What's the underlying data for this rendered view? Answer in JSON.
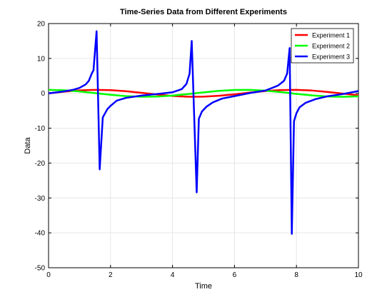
{
  "chart_data": {
    "type": "line",
    "title": "Time-Series Data from Different Experiments",
    "xlabel": "Time",
    "ylabel": "Data",
    "xlim": [
      0,
      10
    ],
    "ylim": [
      -50,
      20
    ],
    "xticks": [
      0,
      2,
      4,
      6,
      8,
      10
    ],
    "yticks": [
      -50,
      -40,
      -30,
      -20,
      -10,
      0,
      10,
      20
    ],
    "grid": true,
    "legend_position": "top-right",
    "series": [
      {
        "name": "Experiment 1",
        "color": "#ff0000",
        "x": [
          0,
          0.5,
          1,
          1.5,
          2,
          2.5,
          3,
          3.5,
          4,
          4.5,
          5,
          5.5,
          6,
          6.5,
          7,
          7.5,
          8,
          8.5,
          9,
          9.5,
          10
        ],
        "y": [
          0,
          0.48,
          0.84,
          1.0,
          0.91,
          0.6,
          0.14,
          -0.35,
          -0.76,
          -0.98,
          -0.96,
          -0.71,
          -0.28,
          0.22,
          0.66,
          0.94,
          0.99,
          0.8,
          0.41,
          -0.08,
          -0.54
        ]
      },
      {
        "name": "Experiment 2",
        "color": "#00ff00",
        "x": [
          0,
          0.5,
          1,
          1.5,
          2,
          2.5,
          3,
          3.5,
          4,
          4.5,
          5,
          5.5,
          6,
          6.5,
          7,
          7.5,
          8,
          8.5,
          9,
          9.5,
          10
        ],
        "y": [
          1.0,
          0.88,
          0.54,
          0.07,
          -0.42,
          -0.8,
          -0.99,
          -0.94,
          -0.65,
          -0.21,
          0.28,
          0.71,
          0.96,
          0.98,
          0.75,
          0.35,
          -0.15,
          -0.6,
          -0.91,
          -1.0,
          -0.84
        ]
      },
      {
        "name": "Experiment 3",
        "color": "#0000ff",
        "x": [
          0,
          0.5,
          0.8,
          1.0,
          1.2,
          1.3,
          1.4,
          1.45,
          1.55,
          1.65,
          1.75,
          1.9,
          2.0,
          2.2,
          2.5,
          3.0,
          3.5,
          4.0,
          4.3,
          4.45,
          4.55,
          4.62,
          4.78,
          4.85,
          4.95,
          5.1,
          5.3,
          5.6,
          6.0,
          6.5,
          7.0,
          7.4,
          7.6,
          7.7,
          7.78,
          7.85,
          7.92,
          8.0,
          8.1,
          8.3,
          8.6,
          9.0,
          9.5,
          10.0
        ],
        "y": [
          0,
          0.55,
          1.03,
          1.56,
          2.57,
          3.6,
          5.8,
          6.6,
          17.8,
          -21.8,
          -6.9,
          -4.5,
          -3.6,
          -2.1,
          -1.3,
          -0.65,
          -0.2,
          0.3,
          1.2,
          2.7,
          5.6,
          15.0,
          -28.4,
          -7.3,
          -5.2,
          -3.8,
          -2.6,
          -1.5,
          -0.8,
          0.1,
          0.8,
          2.2,
          3.6,
          5.7,
          13.0,
          -40.3,
          -8.0,
          -5.7,
          -4.0,
          -2.7,
          -1.7,
          -0.85,
          -0.2,
          0.65
        ]
      }
    ]
  }
}
